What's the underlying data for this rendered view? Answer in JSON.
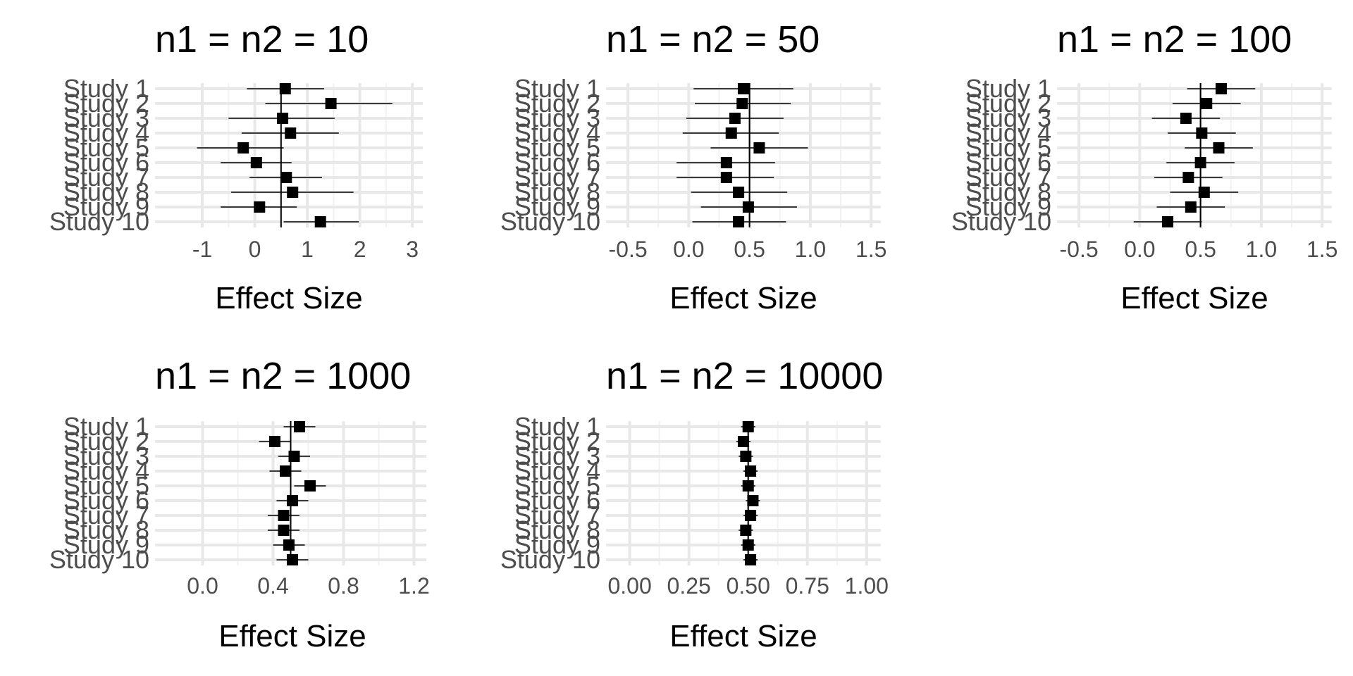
{
  "chart_data": [
    {
      "type": "forest",
      "title": "n1 = n2 = 10",
      "xlabel": "Effect Size",
      "studies": [
        "Study 1",
        "Study 2",
        "Study 3",
        "Study 4",
        "Study 5",
        "Study 6",
        "Study 7",
        "Study 8",
        "Study 9",
        "Study 10"
      ],
      "estimates": [
        0.58,
        1.45,
        0.53,
        0.68,
        -0.22,
        0.03,
        0.6,
        0.72,
        0.09,
        1.25
      ],
      "ci_lower": [
        -0.15,
        0.2,
        -0.5,
        -0.25,
        -1.1,
        -0.65,
        -0.1,
        -0.45,
        -0.65,
        0.55
      ],
      "ci_upper": [
        1.32,
        2.62,
        1.52,
        1.6,
        0.55,
        0.7,
        1.28,
        1.88,
        0.8,
        1.98
      ],
      "reference_line": 0.5,
      "xlim": [
        -1.9,
        3.2
      ],
      "xticks": [
        -1,
        0,
        1,
        2,
        3
      ],
      "xtick_labels": [
        "-1",
        "0",
        "1",
        "2",
        "3"
      ],
      "grid": true
    },
    {
      "type": "forest",
      "title": "n1 = n2 = 50",
      "xlabel": "Effect Size",
      "studies": [
        "Study 1",
        "Study 2",
        "Study 3",
        "Study 4",
        "Study 5",
        "Study 6",
        "Study 7",
        "Study 8",
        "Study 9",
        "Study 10"
      ],
      "estimates": [
        0.45,
        0.44,
        0.38,
        0.35,
        0.58,
        0.31,
        0.31,
        0.41,
        0.49,
        0.41
      ],
      "ci_lower": [
        0.04,
        0.05,
        -0.02,
        -0.05,
        0.18,
        -0.1,
        -0.1,
        0.02,
        0.1,
        0.03
      ],
      "ci_upper": [
        0.86,
        0.84,
        0.78,
        0.74,
        0.98,
        0.71,
        0.7,
        0.81,
        0.89,
        0.8
      ],
      "reference_line": 0.5,
      "xlim": [
        -0.68,
        1.58
      ],
      "xticks": [
        -0.5,
        0,
        0.5,
        1,
        1.5
      ],
      "xtick_labels": [
        "-0.5",
        "0.0",
        "0.5",
        "1.0",
        "1.5"
      ],
      "grid": true
    },
    {
      "type": "forest",
      "title": "n1 = n2 = 100",
      "xlabel": "Effect Size",
      "studies": [
        "Study 1",
        "Study 2",
        "Study 3",
        "Study 4",
        "Study 5",
        "Study 6",
        "Study 7",
        "Study 8",
        "Study 9",
        "Study 10"
      ],
      "estimates": [
        0.67,
        0.55,
        0.38,
        0.51,
        0.65,
        0.5,
        0.4,
        0.53,
        0.42,
        0.23
      ],
      "ci_lower": [
        0.39,
        0.27,
        0.1,
        0.23,
        0.37,
        0.22,
        0.12,
        0.25,
        0.14,
        -0.05
      ],
      "ci_upper": [
        0.95,
        0.83,
        0.66,
        0.79,
        0.93,
        0.78,
        0.68,
        0.81,
        0.7,
        0.51
      ],
      "reference_line": 0.5,
      "xlim": [
        -0.68,
        1.58
      ],
      "xticks": [
        -0.5,
        0,
        0.5,
        1,
        1.5
      ],
      "xtick_labels": [
        "-0.5",
        "0.0",
        "0.5",
        "1.0",
        "1.5"
      ],
      "grid": true
    },
    {
      "type": "forest",
      "title": "n1 = n2 = 1000",
      "xlabel": "Effect Size",
      "studies": [
        "Study 1",
        "Study 2",
        "Study 3",
        "Study 4",
        "Study 5",
        "Study 6",
        "Study 7",
        "Study 8",
        "Study 9",
        "Study 10"
      ],
      "estimates": [
        0.55,
        0.41,
        0.52,
        0.47,
        0.61,
        0.51,
        0.46,
        0.46,
        0.49,
        0.51
      ],
      "ci_lower": [
        0.46,
        0.32,
        0.43,
        0.38,
        0.52,
        0.42,
        0.37,
        0.37,
        0.4,
        0.42
      ],
      "ci_upper": [
        0.64,
        0.5,
        0.61,
        0.56,
        0.7,
        0.6,
        0.55,
        0.55,
        0.58,
        0.6
      ],
      "reference_line": 0.5,
      "xlim": [
        -0.27,
        1.27
      ],
      "xticks": [
        0,
        0.4,
        0.8,
        1.2
      ],
      "xtick_labels": [
        "0.0",
        "0.4",
        "0.8",
        "1.2"
      ],
      "grid": true
    },
    {
      "type": "forest",
      "title": "n1 = n2 = 10000",
      "xlabel": "Effect Size",
      "studies": [
        "Study 1",
        "Study 2",
        "Study 3",
        "Study 4",
        "Study 5",
        "Study 6",
        "Study 7",
        "Study 8",
        "Study 9",
        "Study 10"
      ],
      "estimates": [
        0.5,
        0.48,
        0.49,
        0.51,
        0.5,
        0.52,
        0.51,
        0.49,
        0.5,
        0.51
      ],
      "ci_lower": [
        0.47,
        0.45,
        0.46,
        0.48,
        0.47,
        0.49,
        0.48,
        0.46,
        0.47,
        0.48
      ],
      "ci_upper": [
        0.53,
        0.51,
        0.52,
        0.54,
        0.53,
        0.55,
        0.54,
        0.52,
        0.53,
        0.54
      ],
      "reference_line": 0.5,
      "xlim": [
        -0.1,
        1.06
      ],
      "xticks": [
        0,
        0.25,
        0.5,
        0.75,
        1
      ],
      "xtick_labels": [
        "0.00",
        "0.25",
        "0.50",
        "0.75",
        "1.00"
      ],
      "grid": true
    }
  ]
}
